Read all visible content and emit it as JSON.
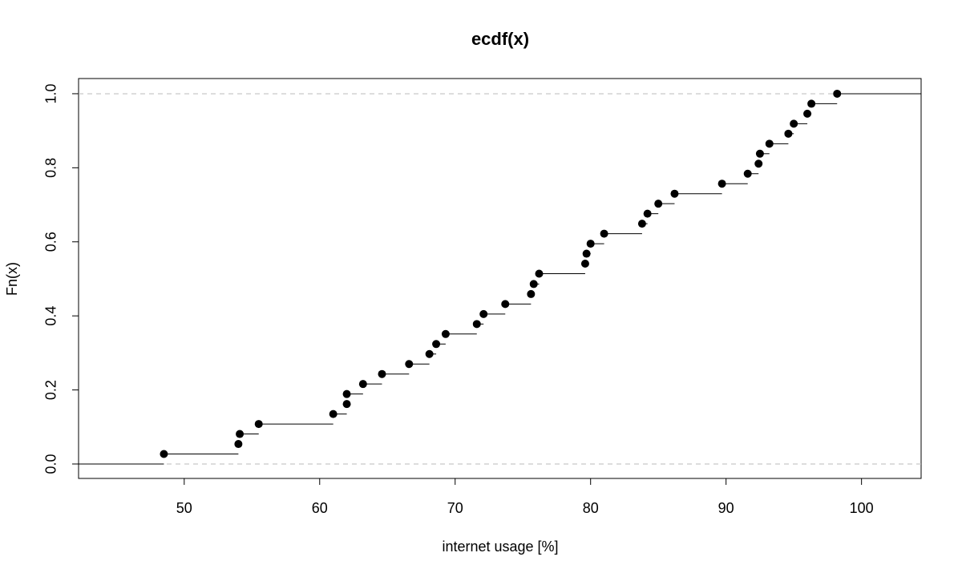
{
  "chart_data": {
    "type": "ecdf",
    "title": "ecdf(x)",
    "x_label": "internet usage [%]",
    "y_label": "Fn(x)",
    "x": [
      48.5,
      54.0,
      54.1,
      55.5,
      61.0,
      62.0,
      62.0,
      63.2,
      64.6,
      66.6,
      68.1,
      68.6,
      69.3,
      71.6,
      72.1,
      73.7,
      75.6,
      75.8,
      76.2,
      79.6,
      79.7,
      80.0,
      81.0,
      83.8,
      84.2,
      85.0,
      86.2,
      89.7,
      91.6,
      92.4,
      92.5,
      93.2,
      94.6,
      95.0,
      96.0,
      96.3,
      98.2
    ],
    "values": [
      0.027,
      0.054,
      0.081,
      0.108,
      0.135,
      0.162,
      0.189,
      0.216,
      0.243,
      0.27,
      0.297,
      0.324,
      0.351,
      0.378,
      0.405,
      0.432,
      0.459,
      0.486,
      0.514,
      0.541,
      0.568,
      0.595,
      0.622,
      0.649,
      0.676,
      0.703,
      0.73,
      0.757,
      0.784,
      0.811,
      0.838,
      0.865,
      0.892,
      0.919,
      0.946,
      0.973,
      1.0
    ],
    "color": "#000000",
    "xlim": [
      42.2,
      104.4
    ],
    "ylim": [
      -0.039,
      1.041
    ],
    "xticks": [
      50,
      60,
      70,
      80,
      90,
      100
    ],
    "yticks": [
      {
        "value": 0,
        "label": "0.0"
      },
      {
        "value": 0.2,
        "label": "0.2"
      },
      {
        "value": 0.4,
        "label": "0.4"
      },
      {
        "value": 0.6,
        "label": "0.6"
      },
      {
        "value": 0.8,
        "label": "0.8"
      },
      {
        "value": 1,
        "label": "1.0"
      }
    ]
  }
}
